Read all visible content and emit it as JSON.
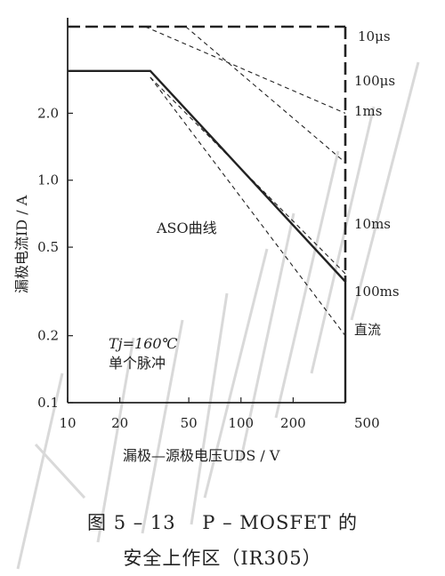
{
  "chart_data": {
    "type": "line",
    "x_scale": "log",
    "y_scale": "log",
    "xlim": [
      10,
      400
    ],
    "ylim": [
      0.1,
      5
    ],
    "x_ticks": [
      {
        "value": 10,
        "label": "10"
      },
      {
        "value": 20,
        "label": "20"
      },
      {
        "value": 50,
        "label": "50"
      },
      {
        "value": 100,
        "label": "100"
      },
      {
        "value": 200,
        "label": "200"
      },
      {
        "value": 500,
        "label": "500"
      }
    ],
    "y_ticks": [
      {
        "value": 0.1,
        "label": "0.1"
      },
      {
        "value": 0.2,
        "label": "0.2"
      },
      {
        "value": 0.5,
        "label": "0.5"
      },
      {
        "value": 1.0,
        "label": "1.0"
      },
      {
        "value": 2.0,
        "label": "2.0"
      }
    ],
    "xlabel": "漏极—源极电压UDS / V",
    "ylabel": "漏极电流ID / A",
    "series": [
      {
        "name": "10μs",
        "style": "dash-heavy",
        "points": [
          [
            10,
            4.9
          ],
          [
            400,
            4.9
          ]
        ]
      },
      {
        "name": "100μs",
        "style": "dash",
        "points": [
          [
            28,
            4.9
          ],
          [
            400,
            2.0
          ]
        ]
      },
      {
        "name": "1ms",
        "style": "dash",
        "points": [
          [
            48,
            4.9
          ],
          [
            400,
            1.2
          ]
        ]
      },
      {
        "name": "10ms",
        "style": "dash",
        "points": [
          [
            30,
            2.9
          ],
          [
            400,
            0.38
          ]
        ]
      },
      {
        "name": "100ms",
        "style": "dash",
        "points": [
          [
            30,
            2.9
          ],
          [
            400,
            0.2
          ]
        ]
      },
      {
        "name": "直流",
        "style": "solid",
        "points": [
          [
            10,
            3.1
          ],
          [
            30,
            3.1
          ],
          [
            400,
            0.35
          ],
          [
            400,
            0.1
          ]
        ]
      }
    ],
    "annotations": {
      "aso": "ASO曲线",
      "tj": "Tj=160℃",
      "pulse": "单个脉冲"
    }
  },
  "caption": {
    "line1": "图 5 – 13　 P – MOSFET 的",
    "line2": "安全上作区（IR305）"
  },
  "colors": {
    "ink": "#222222",
    "watermark": "#d0d0d0"
  }
}
